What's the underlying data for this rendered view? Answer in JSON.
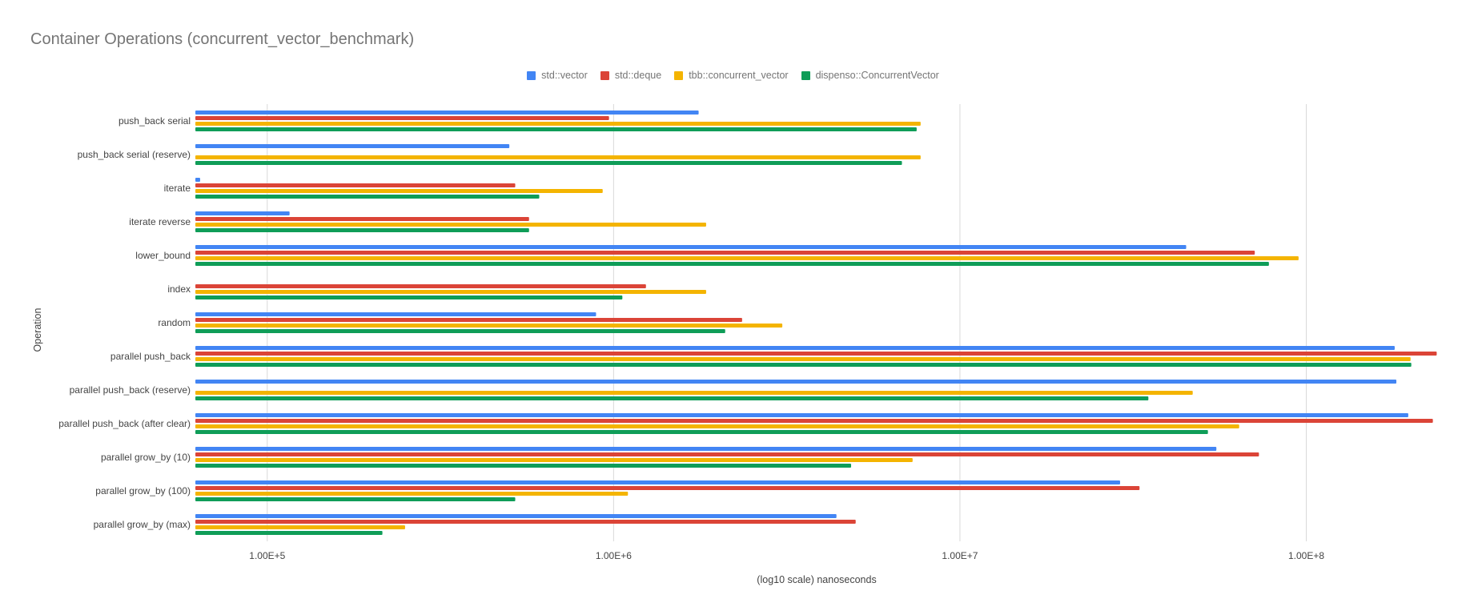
{
  "chart_data": {
    "type": "bar",
    "orientation": "horizontal",
    "title": "Container Operations (concurrent_vector_benchmark)",
    "xlabel": "(log10 scale) nanoseconds",
    "ylabel": "Operation",
    "xscale": "log10",
    "xlim": [
      62000,
      240000000
    ],
    "xticks": [
      100000,
      1000000,
      10000000,
      100000000
    ],
    "xtick_labels": [
      "1.00E+5",
      "1.00E+6",
      "1.00E+7",
      "1.00E+8"
    ],
    "grid": true,
    "legend_position": "top-center",
    "categories": [
      "push_back serial",
      "push_back serial (reserve)",
      "iterate",
      "iterate reverse",
      "lower_bound",
      "index",
      "random",
      "parallel push_back",
      "parallel push_back (reserve)",
      "parallel push_back (after clear)",
      "parallel grow_by (10)",
      "parallel grow_by (100)",
      "parallel grow_by (max)"
    ],
    "series": [
      {
        "name": "std::vector",
        "color": "#4285F4",
        "values": [
          1760000,
          500000,
          64000,
          116000,
          45000000,
          null,
          890000,
          180000000,
          182000000,
          197000000,
          55000000,
          29000000,
          4400000
        ]
      },
      {
        "name": "std::deque",
        "color": "#DB4437",
        "values": [
          970000,
          null,
          520000,
          570000,
          71000000,
          1240000,
          2350000,
          238000000,
          null,
          232000000,
          73000000,
          33000000,
          5000000
        ]
      },
      {
        "name": "tbb::concurrent_vector",
        "color": "#F4B400",
        "values": [
          7700000,
          7700000,
          930000,
          1850000,
          95000000,
          1850000,
          3070000,
          200000000,
          47000000,
          64000000,
          7300000,
          1100000,
          250000
        ]
      },
      {
        "name": "dispenso::ConcurrentVector",
        "color": "#0F9D58",
        "values": [
          7500000,
          6800000,
          610000,
          570000,
          78000000,
          1060000,
          2100000,
          201000000,
          35000000,
          52000000,
          4850000,
          520000,
          215000
        ]
      }
    ]
  }
}
